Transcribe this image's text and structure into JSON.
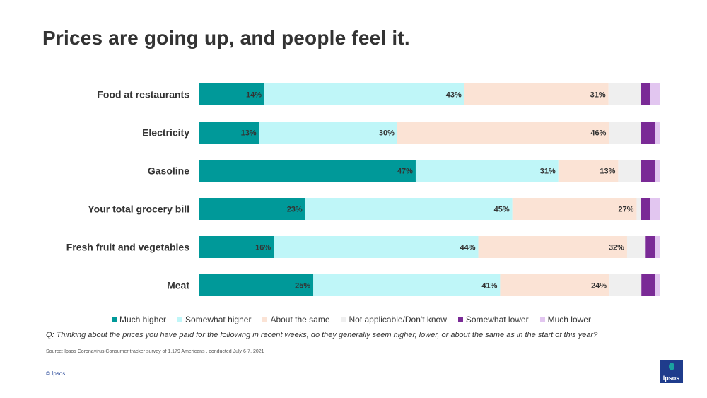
{
  "title": "Prices are going up, and people feel it.",
  "chart_data": {
    "type": "bar",
    "orientation": "horizontal",
    "stacked": true,
    "percent_scale": true,
    "categories": [
      "Food at restaurants",
      "Electricity",
      "Gasoline",
      "Your total grocery bill",
      "Fresh fruit and vegetables",
      "Meat"
    ],
    "series": [
      {
        "name": "Much higher",
        "color": "#009999",
        "values": [
          14,
          13,
          47,
          23,
          16,
          25
        ],
        "labels": [
          "14%",
          "13%",
          "47%",
          "23%",
          "16%",
          "25%"
        ]
      },
      {
        "name": "Somewhat higher",
        "color": "#bff6f8",
        "values": [
          43,
          30,
          31,
          45,
          44,
          41
        ],
        "labels": [
          "43%",
          "30%",
          "31%",
          "45%",
          "44%",
          "41%"
        ]
      },
      {
        "name": "About the same",
        "color": "#fbe3d5",
        "values": [
          31,
          46,
          13,
          27,
          32,
          24
        ],
        "labels": [
          "31%",
          "46%",
          "13%",
          "27%",
          "32%",
          "24%"
        ]
      },
      {
        "name": "Not applicable/Don't know",
        "color": "#efefef",
        "values": [
          7,
          7,
          5,
          1,
          4,
          7
        ],
        "labels": [
          "",
          "",
          "",
          "",
          "",
          ""
        ]
      },
      {
        "name": "Somewhat lower",
        "color": "#7a2a96",
        "values": [
          2,
          3,
          3,
          2,
          2,
          3
        ],
        "labels": [
          "",
          "",
          "",
          "",
          "",
          ""
        ]
      },
      {
        "name": "Much lower",
        "color": "#e2c6f0",
        "values": [
          2,
          1,
          1,
          2,
          1,
          1
        ],
        "labels": [
          "",
          "",
          "",
          "",
          "",
          ""
        ]
      }
    ],
    "xlim": [
      0,
      100
    ],
    "legend_position": "bottom"
  },
  "question": "Q: Thinking about the prices you have paid for the following in recent weeks, do they generally seem higher, lower, or about the same as in the start of this year?",
  "source": "Source: Ipsos Coronavirus Consumer tracker survey of 1,179 Americans , conducted July 6-7, 2021",
  "copyright": "© Ipsos",
  "logo_text": "Ipsos"
}
